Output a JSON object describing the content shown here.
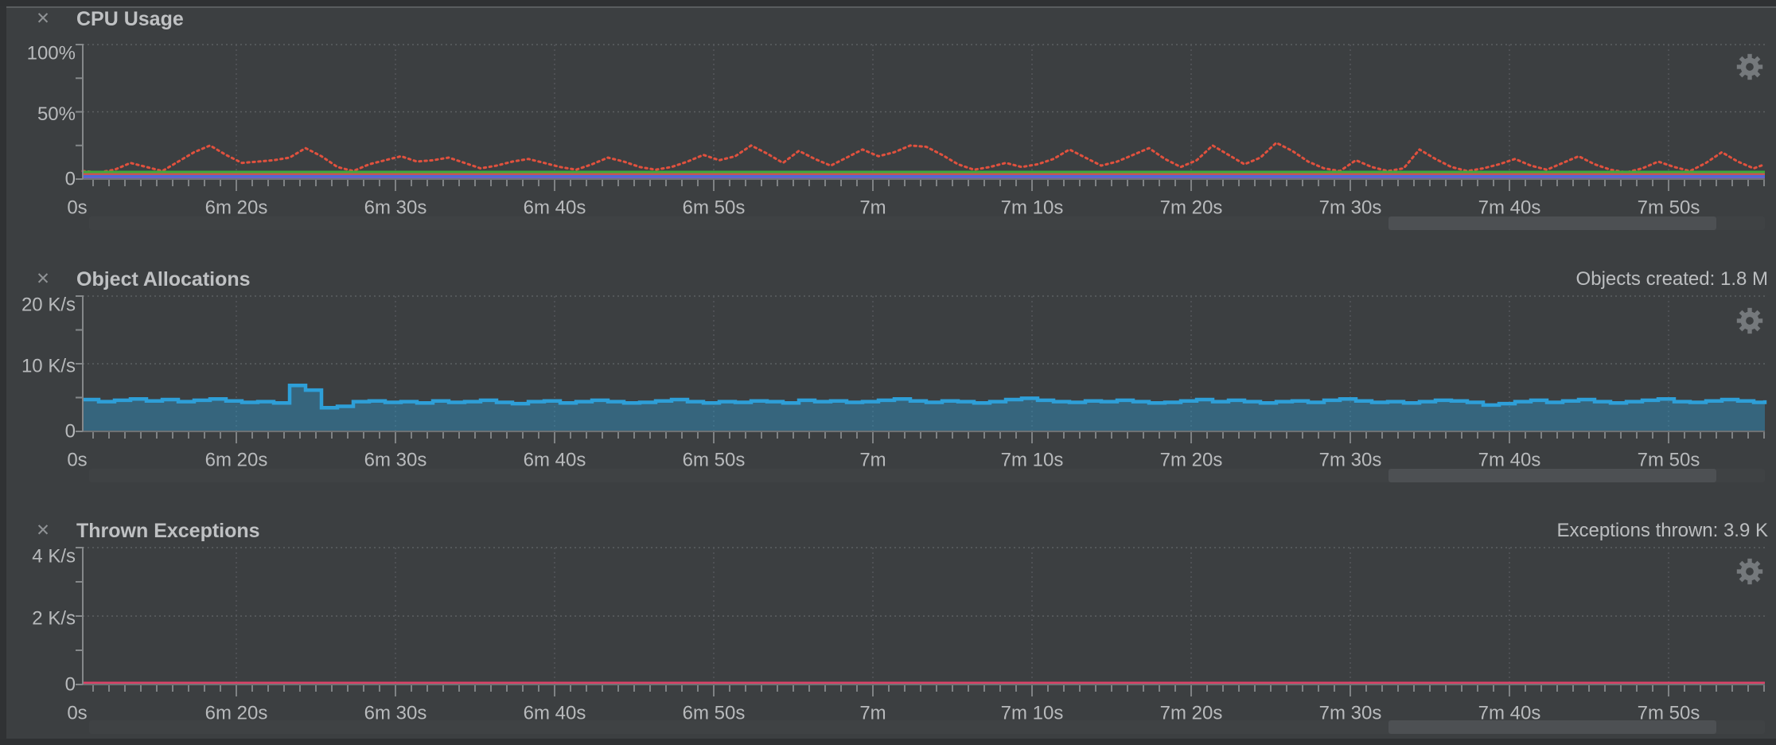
{
  "icons": {
    "close": "✕",
    "gear": "gear"
  },
  "time_axis": {
    "labels": [
      "0s",
      "6m 20s",
      "6m 30s",
      "6m 40s",
      "6m 50s",
      "7m",
      "7m 10s",
      "7m 20s",
      "7m 30s",
      "7m 40s",
      "7m 50s"
    ],
    "seconds_per_major": 10,
    "seconds_per_minor_tick": 1
  },
  "panels": [
    {
      "title": "CPU Usage",
      "right_label": "",
      "y_axis": {
        "ticks": [
          "100%",
          "50%",
          "0"
        ],
        "max": 100,
        "unit": "%"
      },
      "chart_data": {
        "type": "line",
        "ylim": [
          0,
          100
        ],
        "x_step_seconds": 1,
        "series": [
          {
            "name": "cpu-load-dotted",
            "color": "#e0513e",
            "style": "dotted",
            "values": [
              6,
              5,
              7,
              12,
              9,
              6,
              13,
              20,
              25,
              18,
              12,
              13,
              14,
              16,
              23,
              17,
              9,
              6,
              11,
              14,
              17,
              13,
              14,
              16,
              12,
              8,
              10,
              13,
              15,
              12,
              9,
              7,
              11,
              16,
              13,
              9,
              7,
              9,
              13,
              18,
              14,
              17,
              25,
              19,
              12,
              21,
              15,
              10,
              16,
              22,
              17,
              20,
              25,
              24,
              18,
              11,
              7,
              9,
              12,
              9,
              11,
              15,
              22,
              16,
              10,
              13,
              18,
              23,
              15,
              9,
              14,
              25,
              18,
              11,
              16,
              27,
              21,
              13,
              8,
              6,
              14,
              9,
              6,
              8,
              22,
              15,
              9,
              6,
              8,
              11,
              15,
              10,
              7,
              12,
              17,
              11,
              7,
              5,
              8,
              13,
              9,
              6,
              12,
              20,
              13,
              8,
              11,
              15
            ]
          },
          {
            "name": "flat-green-line",
            "color": "#3faa3d",
            "style": "solid",
            "constant": 5.2
          },
          {
            "name": "flat-red-line",
            "color": "#c75454",
            "style": "solid",
            "constant": 3.4
          },
          {
            "name": "flat-blue-line",
            "color": "#4a6bd6",
            "style": "solid",
            "constant": 1.9
          },
          {
            "name": "flat-purple-line",
            "color": "#6f5fc4",
            "style": "solid",
            "constant": 0.8
          }
        ]
      }
    },
    {
      "title": "Object Allocations",
      "right_label": "Objects created: 1.8 M",
      "y_axis": {
        "ticks": [
          "20 K/s",
          "10 K/s",
          "0"
        ],
        "max": 20,
        "unit": "K/s"
      },
      "chart_data": {
        "type": "step-area",
        "ylim": [
          0,
          20
        ],
        "x_step_seconds": 1,
        "series": [
          {
            "name": "allocations",
            "color": "#2e9fd8",
            "fill": "rgba(46,159,216,0.40)",
            "values": [
              4.7,
              4.4,
              4.6,
              4.8,
              4.5,
              4.7,
              4.4,
              4.6,
              4.8,
              4.5,
              4.3,
              4.4,
              4.2,
              6.8,
              6.1,
              3.5,
              3.7,
              4.4,
              4.5,
              4.3,
              4.4,
              4.2,
              4.5,
              4.3,
              4.4,
              4.6,
              4.3,
              4.1,
              4.4,
              4.5,
              4.2,
              4.4,
              4.6,
              4.4,
              4.2,
              4.3,
              4.5,
              4.7,
              4.4,
              4.2,
              4.4,
              4.3,
              4.5,
              4.4,
              4.2,
              4.6,
              4.4,
              4.5,
              4.3,
              4.4,
              4.6,
              4.8,
              4.5,
              4.3,
              4.5,
              4.4,
              4.2,
              4.4,
              4.7,
              4.9,
              4.6,
              4.4,
              4.3,
              4.5,
              4.4,
              4.6,
              4.4,
              4.2,
              4.3,
              4.5,
              4.7,
              4.4,
              4.6,
              4.4,
              4.2,
              4.4,
              4.5,
              4.3,
              4.6,
              4.8,
              4.5,
              4.3,
              4.4,
              4.2,
              4.4,
              4.6,
              4.5,
              4.3,
              3.9,
              4.1,
              4.4,
              4.6,
              4.3,
              4.5,
              4.7,
              4.4,
              4.2,
              4.4,
              4.6,
              4.8,
              4.4,
              4.3,
              4.5,
              4.7,
              4.5,
              4.3,
              4.6,
              4.4
            ]
          }
        ]
      }
    },
    {
      "title": "Thrown Exceptions",
      "right_label": "Exceptions thrown: 3.9 K",
      "y_axis": {
        "ticks": [
          "4 K/s",
          "2 K/s",
          "0"
        ],
        "max": 4,
        "unit": "K/s"
      },
      "chart_data": {
        "type": "line",
        "ylim": [
          0,
          4
        ],
        "x_step_seconds": 1,
        "series": [
          {
            "name": "exceptions",
            "color": "#db4368",
            "style": "solid",
            "constant": 0.04
          }
        ]
      }
    }
  ]
}
